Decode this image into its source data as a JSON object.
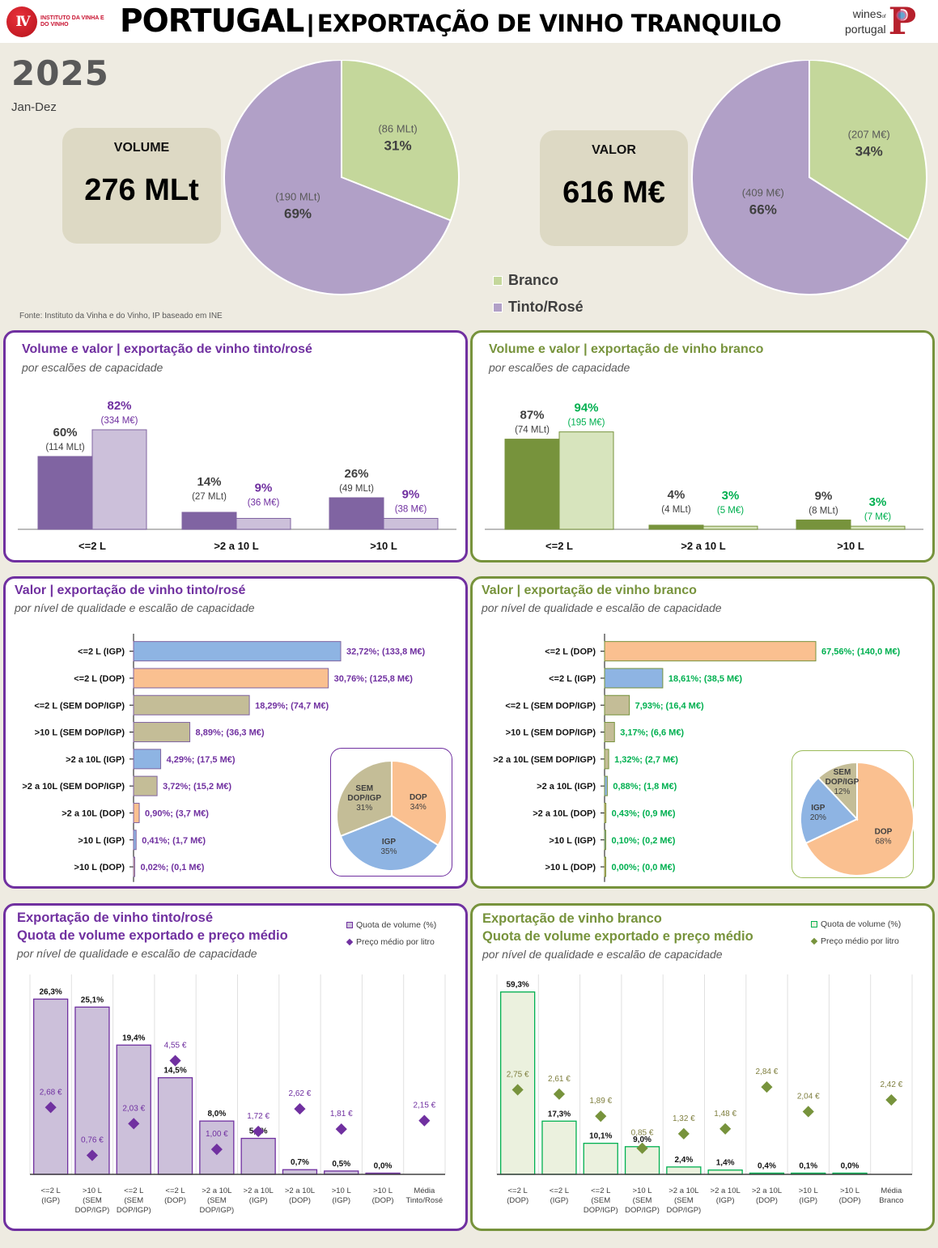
{
  "header": {
    "ivv_logo_text": "INSTITUTO DA VINHA E DO VINHO",
    "ivv_logo_mark": "IV",
    "title_main": "PORTUGAL",
    "title_separator": "|",
    "title_rest": "EXPORTAÇÃO DE VINHO TRANQUILO",
    "wp_logo_line1": "wines",
    "wp_logo_of": "of",
    "wp_logo_line2": "portugal",
    "wp_logo_mark": "P"
  },
  "summary": {
    "year": "2025",
    "period": "Jan-Dez",
    "volume_label": "VOLUME",
    "volume_value": "276 MLt",
    "valor_label": "VALOR",
    "valor_value": "616 M€",
    "source": "Fonte:  Instituto da Vinha e  do Vinho, IP baseado em INE",
    "legend": [
      {
        "label": "Branco",
        "color": "#c4d79b"
      },
      {
        "label": "Tinto/Rosé",
        "color": "#b1a0c7"
      }
    ]
  },
  "colors": {
    "purple": "#7030a0",
    "purple_dark_bar": "#8064a2",
    "purple_light_bar": "#ccc0da",
    "green": "#77933c",
    "green_text": "#00b050",
    "green_light_bar": "#d7e4bd",
    "igp": "#8eb4e3",
    "dop": "#fac090",
    "sem": "#c4bd97",
    "branco": "#c4d79b",
    "tinto": "#b1a0c7"
  },
  "panels": {
    "p1": {
      "title": "Volume e valor | exportação de vinho tinto/rosé",
      "subtitle": "por escalões de capacidade"
    },
    "p2": {
      "title": "Volume e valor | exportação de vinho branco",
      "subtitle": "por escalões de capacidade"
    },
    "p3": {
      "title": "Valor | exportação de vinho tinto/rosé",
      "subtitle": "por nível de qualidade e escalão de capacidade"
    },
    "p4": {
      "title": "Valor | exportação de vinho branco",
      "subtitle": "por nível de qualidade e escalão de capacidade"
    },
    "p5": {
      "title": "Exportação de vinho tinto/rosé",
      "title2": "Quota de volume exportado e preço médio",
      "subtitle": "por nível de qualidade e escalão de capacidade",
      "legend_bar": "Quota de volume (%)",
      "legend_marker": "Preço médio por litro"
    },
    "p6": {
      "title": "Exportação de vinho branco",
      "title2": "Quota de volume exportado e preço médio",
      "subtitle": "por nível de qualidade e escalão de capacidade",
      "legend_bar": "Quota de volume (%)",
      "legend_marker": "Preço médio por litro"
    }
  },
  "chart_data": [
    {
      "id": "pie_volume",
      "type": "pie",
      "title": "VOLUME",
      "slices": [
        {
          "label": "Branco",
          "value": 31,
          "pct_label": "31%",
          "sub_label": "(86 MLt)",
          "color": "#c4d79b"
        },
        {
          "label": "Tinto/Rosé",
          "value": 69,
          "pct_label": "69%",
          "sub_label": "(190 MLt)",
          "color": "#b1a0c7"
        }
      ]
    },
    {
      "id": "pie_valor",
      "type": "pie",
      "title": "VALOR",
      "slices": [
        {
          "label": "Branco",
          "value": 34,
          "pct_label": "34%",
          "sub_label": "(207 M€)",
          "color": "#c4d79b"
        },
        {
          "label": "Tinto/Rosé",
          "value": 66,
          "pct_label": "66%",
          "sub_label": "(409 M€)",
          "color": "#b1a0c7"
        }
      ]
    },
    {
      "id": "bar_tinto_capacidade",
      "type": "bar",
      "title": "Volume e valor | exportação de vinho tinto/rosé",
      "categories": [
        "<=2 L",
        ">2 a 10 L",
        ">10 L"
      ],
      "series": [
        {
          "name": "Volume",
          "values": [
            60,
            14,
            26
          ],
          "pct_labels": [
            "60%",
            "14%",
            "26%"
          ],
          "sub_labels": [
            "(114 MLt)",
            "(27 MLt)",
            "(49 MLt)"
          ]
        },
        {
          "name": "Valor",
          "values": [
            82,
            9,
            9
          ],
          "pct_labels": [
            "82%",
            "9%",
            "9%"
          ],
          "sub_labels": [
            "(334 M€)",
            "(36 M€)",
            "(38 M€)"
          ]
        }
      ],
      "ylim": [
        0,
        100
      ]
    },
    {
      "id": "bar_branco_capacidade",
      "type": "bar",
      "title": "Volume e valor | exportação de vinho branco",
      "categories": [
        "<=2 L",
        ">2 a 10 L",
        ">10 L"
      ],
      "series": [
        {
          "name": "Volume",
          "values": [
            87,
            4,
            9
          ],
          "pct_labels": [
            "87%",
            "4%",
            "9%"
          ],
          "sub_labels": [
            "(74 MLt)",
            "(4 MLt)",
            "(8 MLt)"
          ]
        },
        {
          "name": "Valor",
          "values": [
            94,
            3,
            3
          ],
          "pct_labels": [
            "94%",
            "3%",
            "3%"
          ],
          "sub_labels": [
            "(195 M€)",
            "(5 M€)",
            "(7 M€)"
          ]
        }
      ],
      "ylim": [
        0,
        100
      ]
    },
    {
      "id": "hbar_tinto_valor",
      "type": "bar",
      "orientation": "horizontal",
      "title": "Valor | exportação de vinho tinto/rosé",
      "categories": [
        "<=2 L (IGP)",
        "<=2 L (DOP)",
        "<=2 L (SEM DOP/IGP)",
        ">10 L (SEM DOP/IGP)",
        ">2 a 10L (IGP)",
        ">2 a 10L (SEM DOP/IGP)",
        ">2 a 10L (DOP)",
        ">10 L (IGP)",
        ">10 L (DOP)"
      ],
      "values": [
        32.72,
        30.76,
        18.29,
        8.89,
        4.29,
        3.72,
        0.9,
        0.41,
        0.02
      ],
      "quality": [
        "igp",
        "dop",
        "sem",
        "sem",
        "igp",
        "sem",
        "dop",
        "igp",
        "dop"
      ],
      "data_labels": [
        "32,72%; (133,8 M€)",
        "30,76%; (125,8 M€)",
        "18,29%; (74,7 M€)",
        "8,89%; (36,3 M€)",
        "4,29%; (17,5 M€)",
        "3,72%; (15,2 M€)",
        "0,90%; (3,7 M€)",
        "0,41%; (1,7 M€)",
        "0,02%; (0,1 M€)"
      ],
      "xlim": [
        0,
        35
      ]
    },
    {
      "id": "pie_tinto_qualidade",
      "type": "pie",
      "slices": [
        {
          "label": "DOP",
          "value": 34,
          "pct_label": "34%",
          "color": "#fac090"
        },
        {
          "label": "IGP",
          "value": 35,
          "pct_label": "35%",
          "color": "#8eb4e3"
        },
        {
          "label": "SEM DOP/IGP",
          "value": 31,
          "pct_label": "31%",
          "color": "#c4bd97"
        }
      ]
    },
    {
      "id": "hbar_branco_valor",
      "type": "bar",
      "orientation": "horizontal",
      "title": "Valor | exportação de vinho branco",
      "categories": [
        "<=2 L (DOP)",
        "<=2 L (IGP)",
        "<=2 L (SEM DOP/IGP)",
        ">10 L (SEM DOP/IGP)",
        ">2 a 10L (SEM DOP/IGP)",
        ">2 a 10L (IGP)",
        ">2 a 10L (DOP)",
        ">10 L (IGP)",
        ">10 L (DOP)"
      ],
      "values": [
        67.56,
        18.61,
        7.93,
        3.17,
        1.32,
        0.88,
        0.43,
        0.1,
        0.0
      ],
      "quality": [
        "dop",
        "igp",
        "sem",
        "sem",
        "sem",
        "igp",
        "dop",
        "igp",
        "dop"
      ],
      "data_labels": [
        "67,56%; (140,0 M€)",
        "18,61%; (38,5 M€)",
        "7,93%; (16,4 M€)",
        "3,17%; (6,6 M€)",
        "1,32%; (2,7 M€)",
        "0,88%; (1,8 M€)",
        "0,43%; (0,9 M€)",
        "0,10%; (0,2 M€)",
        "0,00%; (0,0 M€)"
      ],
      "xlim": [
        0,
        70
      ]
    },
    {
      "id": "pie_branco_qualidade",
      "type": "pie",
      "slices": [
        {
          "label": "DOP",
          "value": 68,
          "pct_label": "68%",
          "color": "#fac090"
        },
        {
          "label": "IGP",
          "value": 20,
          "pct_label": "20%",
          "color": "#8eb4e3"
        },
        {
          "label": "SEM DOP/IGP",
          "value": 12,
          "pct_label": "12%",
          "color": "#c4bd97"
        }
      ]
    },
    {
      "id": "combo_tinto",
      "type": "bar",
      "title": "Quota de volume exportado e preço médio — tinto/rosé",
      "categories": [
        "<=2 L (IGP)",
        ">10 L (SEM DOP/IGP)",
        "<=2 L (SEM DOP/IGP)",
        "<=2 L (DOP)",
        ">2 a 10L (SEM DOP/IGP)",
        ">2 a 10L (IGP)",
        ">2 a 10L (DOP)",
        ">10 L (IGP)",
        ">10 L (DOP)",
        "Média Tinto/Rosé"
      ],
      "category_lines": [
        [
          "<=2 L",
          "(IGP)"
        ],
        [
          ">10 L",
          "(SEM",
          "DOP/IGP)"
        ],
        [
          "<=2 L",
          "(SEM",
          "DOP/IGP)"
        ],
        [
          "<=2 L",
          "(DOP)"
        ],
        [
          ">2 a 10L",
          "(SEM",
          "DOP/IGP)"
        ],
        [
          ">2 a 10L",
          "(IGP)"
        ],
        [
          ">2 a 10L",
          "(DOP)"
        ],
        [
          ">10 L",
          "(IGP)"
        ],
        [
          ">10 L",
          "(DOP)"
        ],
        [
          "Média",
          "Tinto/Rosé"
        ]
      ],
      "series": [
        {
          "name": "Quota de volume (%)",
          "type": "bar",
          "values": [
            26.3,
            25.1,
            19.4,
            14.5,
            8.0,
            5.4,
            0.7,
            0.5,
            0.0,
            null
          ],
          "labels": [
            "26,3%",
            "25,1%",
            "19,4%",
            "14,5%",
            "8,0%",
            "5,4%",
            "0,7%",
            "0,5%",
            "0,0%",
            ""
          ]
        },
        {
          "name": "Preço médio por litro",
          "type": "scatter",
          "values": [
            2.68,
            0.76,
            2.03,
            4.55,
            1.0,
            1.72,
            2.62,
            1.81,
            null,
            2.15
          ],
          "labels": [
            "2,68 €",
            "0,76 €",
            "2,03 €",
            "4,55 €",
            "1,00 €",
            "1,72 €",
            "2,62 €",
            "1,81 €",
            "",
            "2,15 €"
          ]
        }
      ],
      "ylim_bar": [
        0,
        30
      ],
      "ylim_price": [
        0,
        8
      ]
    },
    {
      "id": "combo_branco",
      "type": "bar",
      "title": "Quota de volume exportado e preço médio — branco",
      "categories": [
        "<=2 L (DOP)",
        "<=2 L (IGP)",
        "<=2 L (SEM DOP/IGP)",
        ">10 L (SEM DOP/IGP)",
        ">2 a 10L (SEM DOP/IGP)",
        ">2 a 10L (IGP)",
        ">2 a 10L (DOP)",
        ">10 L (IGP)",
        ">10 L (DOP)",
        "Média Branco"
      ],
      "category_lines": [
        [
          "<=2 L",
          "(DOP)"
        ],
        [
          "<=2 L",
          "(IGP)"
        ],
        [
          "<=2 L",
          "(SEM",
          "DOP/IGP)"
        ],
        [
          ">10 L",
          "(SEM",
          "DOP/IGP)"
        ],
        [
          ">2 a 10L",
          "(SEM",
          "DOP/IGP)"
        ],
        [
          ">2 a 10L",
          "(IGP)"
        ],
        [
          ">2 a 10L",
          "(DOP)"
        ],
        [
          ">10 L",
          "(IGP)"
        ],
        [
          ">10 L",
          "(DOP)"
        ],
        [
          "Média",
          "Branco"
        ]
      ],
      "series": [
        {
          "name": "Quota de volume (%)",
          "type": "bar",
          "values": [
            59.3,
            17.3,
            10.1,
            9.0,
            2.4,
            1.4,
            0.4,
            0.1,
            0.0,
            null
          ],
          "labels": [
            "59,3%",
            "17,3%",
            "10,1%",
            "9,0%",
            "2,4%",
            "1,4%",
            "0,4%",
            "0,1%",
            "0,0%",
            ""
          ]
        },
        {
          "name": "Preço médio por litro",
          "type": "scatter",
          "values": [
            2.75,
            2.61,
            1.89,
            0.85,
            1.32,
            1.48,
            2.84,
            2.04,
            null,
            2.42
          ],
          "labels": [
            "2,75 €",
            "2,61 €",
            "1,89 €",
            "0,85 €",
            "1,32 €",
            "1,48 €",
            "2,84 €",
            "2,04 €",
            "",
            "2,42 €"
          ]
        }
      ],
      "ylim_bar": [
        0,
        65
      ],
      "ylim_price": [
        0,
        6.5
      ]
    }
  ]
}
